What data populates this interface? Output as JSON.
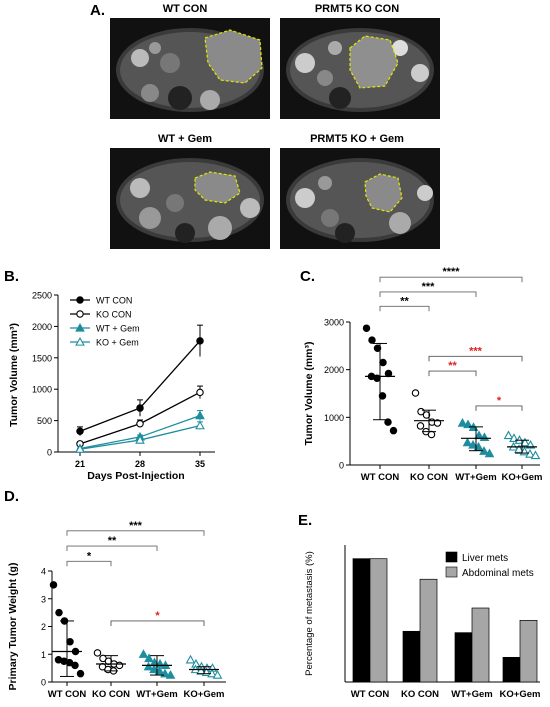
{
  "panel_labels": {
    "a": "A.",
    "b": "B.",
    "c": "C.",
    "d": "D.",
    "e": "E."
  },
  "mri_titles": [
    "WT CON",
    "PRMT5 KO CON",
    "WT + Gem",
    "PRMT5 KO + Gem"
  ],
  "chart_data": [
    {
      "id": "B",
      "type": "line",
      "xlabel": "Days Post-Injection",
      "ylabel": "Tumor Volume (mm³)",
      "x": [
        21,
        28,
        35
      ],
      "ylim": [
        0,
        2500
      ],
      "yticks": [
        0,
        500,
        1000,
        1500,
        2000,
        2500
      ],
      "legend_position": "top-left",
      "series": [
        {
          "name": "WT CON",
          "marker": "filled-circle",
          "color": "#000000",
          "values": [
            330,
            700,
            1770
          ],
          "err": [
            70,
            130,
            250
          ]
        },
        {
          "name": "KO CON",
          "marker": "open-circle",
          "color": "#000000",
          "values": [
            130,
            450,
            950
          ],
          "err": [
            30,
            60,
            100
          ]
        },
        {
          "name": "WT + Gem",
          "marker": "filled-triangle",
          "color": "#1e8e9e",
          "values": [
            55,
            240,
            580
          ],
          "err": [
            10,
            30,
            80
          ]
        },
        {
          "name": "KO + Gem",
          "marker": "open-triangle",
          "color": "#1e8e9e",
          "values": [
            45,
            190,
            420
          ],
          "err": [
            10,
            20,
            60
          ]
        }
      ]
    },
    {
      "id": "C",
      "type": "scatter",
      "ylabel": "Tumor Volume (mm³)",
      "categories": [
        "WT CON",
        "KO CON",
        "WT+Gem",
        "KO+Gem"
      ],
      "ylim": [
        0,
        3000
      ],
      "yticks": [
        0,
        1000,
        2000,
        3000
      ],
      "groups": [
        {
          "name": "WT CON",
          "marker": "filled-circle",
          "color": "#000000",
          "mean": 1860,
          "sd_low": 950,
          "sd_high": 2550,
          "points": [
            2870,
            2620,
            2450,
            2150,
            1920,
            1860,
            1820,
            1450,
            900,
            720
          ]
        },
        {
          "name": "KO CON",
          "marker": "open-circle",
          "color": "#000000",
          "mean": 930,
          "sd_low": 700,
          "sd_high": 1150,
          "points": [
            1510,
            1120,
            1050,
            900,
            880,
            820,
            700,
            640
          ]
        },
        {
          "name": "WT+Gem",
          "marker": "filled-triangle",
          "color": "#1e8e9e",
          "mean": 560,
          "sd_low": 300,
          "sd_high": 800,
          "points": [
            880,
            850,
            790,
            620,
            580,
            470,
            420,
            380,
            290,
            240
          ]
        },
        {
          "name": "KO+Gem",
          "marker": "open-triangle",
          "color": "#1e8e9e",
          "mean": 380,
          "sd_low": 250,
          "sd_high": 520,
          "points": [
            620,
            560,
            520,
            470,
            420,
            380,
            330,
            280,
            230,
            200
          ]
        }
      ],
      "significance": [
        {
          "from": 0,
          "to": 1,
          "label": "**",
          "color": "#000000",
          "y": 3330
        },
        {
          "from": 0,
          "to": 2,
          "label": "***",
          "color": "#000000",
          "y": 3630
        },
        {
          "from": 0,
          "to": 3,
          "label": "****",
          "color": "#000000",
          "y": 3940
        },
        {
          "from": 1,
          "to": 3,
          "label": "***",
          "color": "#e02020",
          "y": 2280
        },
        {
          "from": 1,
          "to": 2,
          "label": "**",
          "color": "#e02020",
          "y": 1970
        },
        {
          "from": 2,
          "to": 3,
          "label": "*",
          "color": "#e02020",
          "y": 1240
        }
      ]
    },
    {
      "id": "D",
      "type": "scatter",
      "ylabel": "Primary Tumor Weight (g)",
      "categories": [
        "WT CON",
        "KO CON",
        "WT+Gem",
        "KO+Gem"
      ],
      "ylim": [
        0,
        4
      ],
      "yticks": [
        0,
        1,
        2,
        3,
        4
      ],
      "groups": [
        {
          "name": "WT CON",
          "marker": "filled-circle",
          "color": "#000000",
          "mean": 1.1,
          "sd_low": 0.2,
          "sd_high": 2.2,
          "points": [
            3.5,
            2.5,
            2.2,
            1.45,
            1.1,
            0.8,
            0.75,
            0.7,
            0.6,
            0.3
          ]
        },
        {
          "name": "KO CON",
          "marker": "open-circle",
          "color": "#000000",
          "mean": 0.65,
          "sd_low": 0.4,
          "sd_high": 0.95,
          "points": [
            1.05,
            0.85,
            0.75,
            0.65,
            0.6,
            0.55,
            0.45,
            0.4
          ]
        },
        {
          "name": "WT+Gem",
          "marker": "filled-triangle",
          "color": "#1e8e9e",
          "mean": 0.6,
          "sd_low": 0.25,
          "sd_high": 0.95,
          "points": [
            1.0,
            0.85,
            0.7,
            0.65,
            0.6,
            0.55,
            0.45,
            0.4,
            0.3,
            0.25
          ]
        },
        {
          "name": "KO+Gem",
          "marker": "open-triangle",
          "color": "#1e8e9e",
          "mean": 0.45,
          "sd_low": 0.3,
          "sd_high": 0.55,
          "points": [
            0.8,
            0.65,
            0.55,
            0.5,
            0.5,
            0.45,
            0.4,
            0.35,
            0.3,
            0.25
          ]
        }
      ],
      "significance": [
        {
          "from": 0,
          "to": 1,
          "label": "*",
          "color": "#000000",
          "y": 4.35
        },
        {
          "from": 0,
          "to": 2,
          "label": "**",
          "color": "#000000",
          "y": 4.9
        },
        {
          "from": 0,
          "to": 3,
          "label": "***",
          "color": "#000000",
          "y": 5.45
        },
        {
          "from": 1,
          "to": 3,
          "label": "*",
          "color": "#e02020",
          "y": 2.2
        }
      ]
    },
    {
      "id": "E",
      "type": "bar",
      "ylabel": "Percentage of metastasis (%)",
      "categories": [
        "WT CON",
        "KO CON",
        "WT+Gem",
        "KO+Gem"
      ],
      "ylim": [
        0,
        100
      ],
      "legend_position": "top-right",
      "series": [
        {
          "name": "Liver mets",
          "color": "#000000",
          "values": [
            90,
            37,
            36,
            18
          ]
        },
        {
          "name": "Abdominal mets",
          "color": "#a6a6a6",
          "values": [
            90,
            75,
            54,
            45
          ]
        }
      ]
    }
  ]
}
